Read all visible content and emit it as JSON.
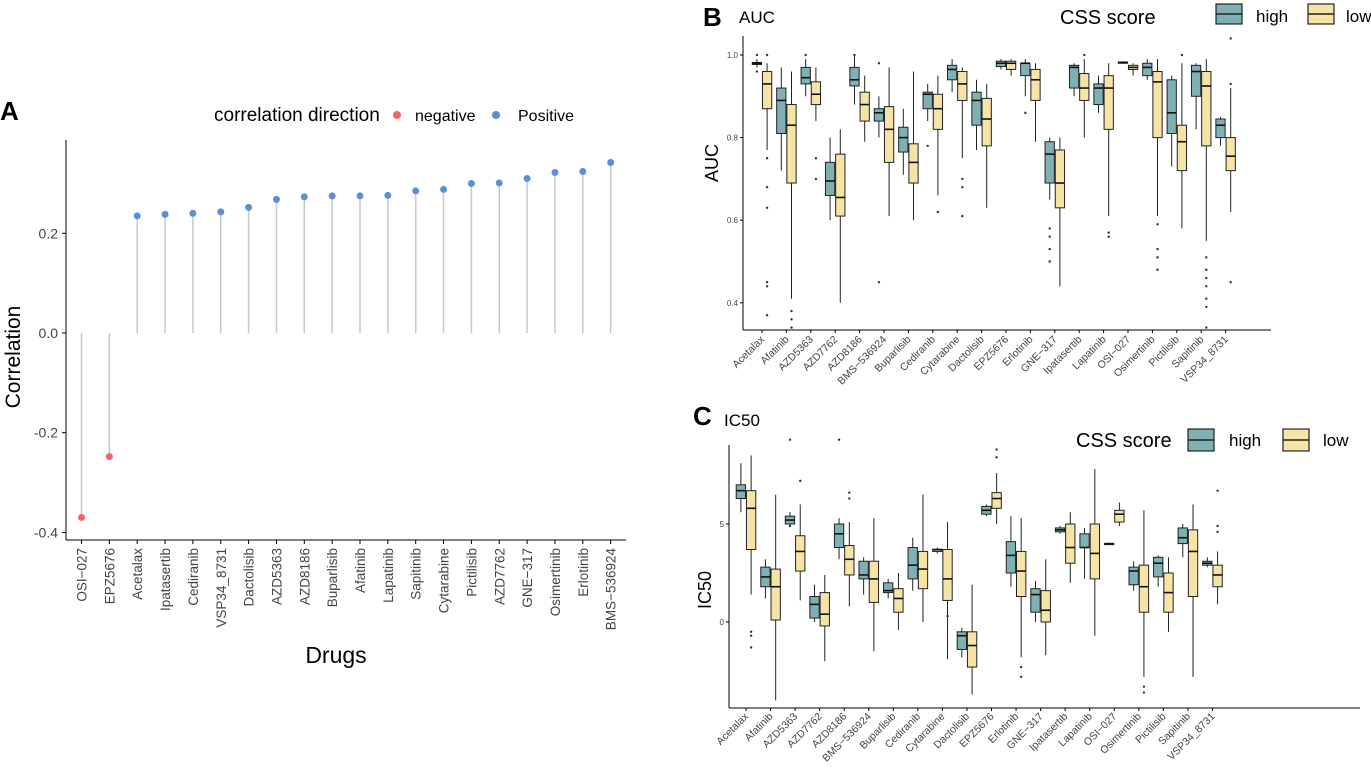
{
  "figure": {
    "panel_a": {
      "letter": "A",
      "legend_title": "correlation direction",
      "legend_negative": "negative",
      "legend_positive": "Positive"
    },
    "panel_b": {
      "letter": "B",
      "title": "AUC"
    },
    "panel_c": {
      "letter": "C",
      "title": "IC50"
    },
    "legend_css": {
      "title": "CSS score",
      "high": "high",
      "low": "low"
    }
  },
  "colors": {
    "negative": "#ee6666",
    "positive": "#5b8fd6",
    "high": "#7fb0b3",
    "low": "#f6e3a6",
    "stem": "#c8c8c8"
  },
  "chart_data": [
    {
      "type": "lollipop",
      "title": "",
      "xlabel": "Drugs",
      "ylabel": "Correlation",
      "ylim": [
        -0.41,
        0.36
      ],
      "yticks": [
        -0.4,
        -0.2,
        0.0,
        0.2
      ],
      "ytick_labels": [
        "-0.4",
        "-0.2",
        "0.0",
        "0.2"
      ],
      "legend": "top",
      "categories": [
        "OSI−027",
        "EPZ5676",
        "Acetalax",
        "Ipatasertib",
        "Cediranib",
        "VSP34_8731",
        "Dactolisib",
        "AZD5363",
        "AZD8186",
        "Buparlisib",
        "Afatinib",
        "Lapatinib",
        "Sapitinib",
        "Cytarabine",
        "Pictilisib",
        "AZD7762",
        "GNE−317",
        "Osimertinib",
        "Erlotinib",
        "BMS−536924"
      ],
      "values": [
        -0.37,
        -0.248,
        0.235,
        0.238,
        0.24,
        0.243,
        0.252,
        0.268,
        0.273,
        0.275,
        0.275,
        0.276,
        0.285,
        0.288,
        0.3,
        0.301,
        0.31,
        0.322,
        0.324,
        0.342
      ],
      "direction": [
        "negative",
        "negative",
        "positive",
        "positive",
        "positive",
        "positive",
        "positive",
        "positive",
        "positive",
        "positive",
        "positive",
        "positive",
        "positive",
        "positive",
        "positive",
        "positive",
        "positive",
        "positive",
        "positive",
        "positive"
      ]
    },
    {
      "type": "boxplot",
      "title": "AUC",
      "xlabel": "",
      "ylabel": "AUC",
      "ylim": [
        0.33,
        1.03
      ],
      "yticks": [
        0.4,
        0.6,
        0.8,
        1.0
      ],
      "ytick_labels": [
        "0.4",
        "0.6",
        "0.8",
        "1.0"
      ],
      "legend_title": "CSS score",
      "series_names": [
        "high",
        "low"
      ],
      "categories": [
        "Acetalax",
        "Afatinib",
        "AZD5363",
        "AZD7762",
        "AZD8186",
        "BMS−536924",
        "Buparlisib",
        "Cediranib",
        "Cytarabine",
        "Dactolisib",
        "EPZ5676",
        "Erlotinib",
        "GNE−317",
        "Ipatasertib",
        "Lapatinib",
        "OSI−027",
        "Osimertinib",
        "Pictilisib",
        "Sapitinib",
        "VSP34_8731"
      ],
      "high": [
        {
          "min": 0.97,
          "q1": 0.977,
          "median": 0.98,
          "q3": 0.982,
          "max": 0.99,
          "outliers": [
            1.0,
            0.96
          ]
        },
        {
          "min": 0.72,
          "q1": 0.81,
          "median": 0.89,
          "q3": 0.92,
          "max": 0.97,
          "outliers": []
        },
        {
          "min": 0.9,
          "q1": 0.93,
          "median": 0.945,
          "q3": 0.97,
          "max": 0.99,
          "outliers": [
            1.0
          ]
        },
        {
          "min": 0.6,
          "q1": 0.66,
          "median": 0.695,
          "q3": 0.74,
          "max": 0.8,
          "outliers": []
        },
        {
          "min": 0.88,
          "q1": 0.925,
          "median": 0.94,
          "q3": 0.97,
          "max": 1.0,
          "outliers": [
            1.0
          ]
        },
        {
          "min": 0.8,
          "q1": 0.84,
          "median": 0.86,
          "q3": 0.87,
          "max": 0.9,
          "outliers": [
            0.98,
            0.45
          ]
        },
        {
          "min": 0.71,
          "q1": 0.765,
          "median": 0.8,
          "q3": 0.825,
          "max": 0.87,
          "outliers": []
        },
        {
          "min": 0.84,
          "q1": 0.87,
          "median": 0.905,
          "q3": 0.91,
          "max": 0.93,
          "outliers": [
            0.78
          ]
        },
        {
          "min": 0.91,
          "q1": 0.94,
          "median": 0.965,
          "q3": 0.975,
          "max": 0.99,
          "outliers": []
        },
        {
          "min": 0.77,
          "q1": 0.83,
          "median": 0.89,
          "q3": 0.91,
          "max": 0.94,
          "outliers": []
        },
        {
          "min": 0.965,
          "q1": 0.972,
          "median": 0.98,
          "q3": 0.985,
          "max": 0.99,
          "outliers": []
        },
        {
          "min": 0.9,
          "q1": 0.95,
          "median": 0.98,
          "q3": 0.98,
          "max": 0.99,
          "outliers": [
            0.86
          ]
        },
        {
          "min": 0.65,
          "q1": 0.69,
          "median": 0.76,
          "q3": 0.79,
          "max": 0.8,
          "outliers": [
            0.58,
            0.56,
            0.53,
            0.5
          ]
        },
        {
          "min": 0.9,
          "q1": 0.92,
          "median": 0.97,
          "q3": 0.975,
          "max": 0.98,
          "outliers": []
        },
        {
          "min": 0.86,
          "q1": 0.88,
          "median": 0.92,
          "q3": 0.93,
          "max": 0.95,
          "outliers": []
        },
        {
          "min": 0.98,
          "q1": 0.98,
          "median": 0.982,
          "q3": 0.983,
          "max": 0.985,
          "outliers": []
        },
        {
          "min": 0.94,
          "q1": 0.95,
          "median": 0.97,
          "q3": 0.98,
          "max": 0.99,
          "outliers": []
        },
        {
          "min": 0.73,
          "q1": 0.81,
          "median": 0.86,
          "q3": 0.94,
          "max": 0.95,
          "outliers": []
        },
        {
          "min": 0.82,
          "q1": 0.9,
          "median": 0.96,
          "q3": 0.975,
          "max": 0.98,
          "outliers": []
        },
        {
          "min": 0.78,
          "q1": 0.8,
          "median": 0.83,
          "q3": 0.845,
          "max": 0.85,
          "outliers": []
        }
      ],
      "low": [
        {
          "min": 0.77,
          "q1": 0.87,
          "median": 0.93,
          "q3": 0.96,
          "max": 0.98,
          "outliers": [
            1.0,
            0.75,
            0.68,
            0.63,
            0.45,
            0.44,
            0.37
          ]
        },
        {
          "min": 0.41,
          "q1": 0.69,
          "median": 0.83,
          "q3": 0.88,
          "max": 0.96,
          "outliers": [
            0.38,
            0.36,
            0.34
          ]
        },
        {
          "min": 0.84,
          "q1": 0.88,
          "median": 0.905,
          "q3": 0.935,
          "max": 0.97,
          "outliers": [
            0.75,
            0.7
          ]
        },
        {
          "min": 0.4,
          "q1": 0.61,
          "median": 0.655,
          "q3": 0.76,
          "max": 0.82,
          "outliers": []
        },
        {
          "min": 0.79,
          "q1": 0.84,
          "median": 0.88,
          "q3": 0.91,
          "max": 0.95,
          "outliers": []
        },
        {
          "min": 0.61,
          "q1": 0.74,
          "median": 0.82,
          "q3": 0.875,
          "max": 0.97,
          "outliers": []
        },
        {
          "min": 0.6,
          "q1": 0.69,
          "median": 0.74,
          "q3": 0.785,
          "max": 0.96,
          "outliers": []
        },
        {
          "min": 0.66,
          "q1": 0.82,
          "median": 0.87,
          "q3": 0.905,
          "max": 0.95,
          "outliers": [
            0.62
          ]
        },
        {
          "min": 0.75,
          "q1": 0.89,
          "median": 0.93,
          "q3": 0.96,
          "max": 0.97,
          "outliers": [
            0.7,
            0.68,
            0.61
          ]
        },
        {
          "min": 0.63,
          "q1": 0.78,
          "median": 0.845,
          "q3": 0.895,
          "max": 0.93,
          "outliers": []
        },
        {
          "min": 0.95,
          "q1": 0.965,
          "median": 0.98,
          "q3": 0.985,
          "max": 0.99,
          "outliers": []
        },
        {
          "min": 0.79,
          "q1": 0.89,
          "median": 0.94,
          "q3": 0.965,
          "max": 0.98,
          "outliers": []
        },
        {
          "min": 0.44,
          "q1": 0.63,
          "median": 0.69,
          "q3": 0.77,
          "max": 0.8,
          "outliers": []
        },
        {
          "min": 0.8,
          "q1": 0.89,
          "median": 0.92,
          "q3": 0.955,
          "max": 0.99,
          "outliers": [
            1.0
          ]
        },
        {
          "min": 0.61,
          "q1": 0.82,
          "median": 0.92,
          "q3": 0.95,
          "max": 0.98,
          "outliers": [
            0.57,
            0.56
          ]
        },
        {
          "min": 0.95,
          "q1": 0.965,
          "median": 0.97,
          "q3": 0.975,
          "max": 0.98,
          "outliers": []
        },
        {
          "min": 0.61,
          "q1": 0.8,
          "median": 0.935,
          "q3": 0.96,
          "max": 0.99,
          "outliers": [
            0.59,
            0.53,
            0.51,
            0.48
          ]
        },
        {
          "min": 0.58,
          "q1": 0.72,
          "median": 0.79,
          "q3": 0.83,
          "max": 0.98,
          "outliers": [
            1.0
          ]
        },
        {
          "min": 0.55,
          "q1": 0.78,
          "median": 0.925,
          "q3": 0.96,
          "max": 0.99,
          "outliers": [
            0.51,
            0.48,
            0.46,
            0.44,
            0.41,
            0.39,
            0.34
          ]
        },
        {
          "min": 0.62,
          "q1": 0.72,
          "median": 0.755,
          "q3": 0.8,
          "max": 0.92,
          "outliers": [
            1.04,
            0.93,
            0.45
          ]
        }
      ]
    },
    {
      "type": "boxplot",
      "title": "IC50",
      "xlabel": "",
      "ylabel": "IC50",
      "ylim": [
        -4.2,
        9.5
      ],
      "yticks": [
        0,
        5
      ],
      "ytick_labels": [
        "0",
        "5"
      ],
      "legend_title": "CSS score",
      "series_names": [
        "high",
        "low"
      ],
      "categories": [
        "Acetalax",
        "Afatinib",
        "AZD5363",
        "AZD7762",
        "AZD8186",
        "BMS−536924",
        "Buparlisib",
        "Cediranib",
        "Cytarabine",
        "Dactolisib",
        "EPZ5676",
        "Erlotinib",
        "GNE−317",
        "Ipatasertib",
        "Lapatinib",
        "OSI−027",
        "Osimertinib",
        "Pictilisib",
        "Sapitinib",
        "VSP34_8731"
      ],
      "high": [
        {
          "min": 5.6,
          "q1": 6.3,
          "median": 6.7,
          "q3": 7.0,
          "max": 8.1,
          "outliers": []
        },
        {
          "min": 1.2,
          "q1": 1.8,
          "median": 2.3,
          "q3": 2.8,
          "max": 3.2,
          "outliers": []
        },
        {
          "min": 4.9,
          "q1": 5.0,
          "median": 5.2,
          "q3": 5.4,
          "max": 5.6,
          "outliers": [
            9.3,
            4.9
          ]
        },
        {
          "min": 0.0,
          "q1": 0.2,
          "median": 0.9,
          "q3": 1.3,
          "max": 1.9,
          "outliers": []
        },
        {
          "min": 3.2,
          "q1": 3.8,
          "median": 4.5,
          "q3": 5.0,
          "max": 5.3,
          "outliers": [
            9.3
          ]
        },
        {
          "min": 1.4,
          "q1": 2.2,
          "median": 2.4,
          "q3": 3.1,
          "max": 3.3,
          "outliers": []
        },
        {
          "min": 1.2,
          "q1": 1.5,
          "median": 1.6,
          "q3": 2.0,
          "max": 2.2,
          "outliers": []
        },
        {
          "min": 1.6,
          "q1": 2.2,
          "median": 2.9,
          "q3": 3.8,
          "max": 4.3,
          "outliers": []
        },
        {
          "min": 3.5,
          "q1": 3.6,
          "median": 3.7,
          "q3": 3.7,
          "max": 3.8,
          "outliers": []
        },
        {
          "min": -1.8,
          "q1": -1.4,
          "median": -0.7,
          "q3": -0.5,
          "max": -0.3,
          "outliers": []
        },
        {
          "min": 5.4,
          "q1": 5.5,
          "median": 5.7,
          "q3": 5.9,
          "max": 6.0,
          "outliers": []
        },
        {
          "min": 1.8,
          "q1": 2.5,
          "median": 3.4,
          "q3": 4.1,
          "max": 5.4,
          "outliers": []
        },
        {
          "min": 0.0,
          "q1": 0.5,
          "median": 1.4,
          "q3": 1.7,
          "max": 2.1,
          "outliers": []
        },
        {
          "min": 4.5,
          "q1": 4.6,
          "median": 4.7,
          "q3": 4.8,
          "max": 4.9,
          "outliers": []
        },
        {
          "min": 2.2,
          "q1": 3.8,
          "median": 3.8,
          "q3": 4.5,
          "max": 4.8,
          "outliers": []
        },
        {
          "min": 4.0,
          "q1": 4.0,
          "median": 4.0,
          "q3": 4.0,
          "max": 4.0,
          "outliers": []
        },
        {
          "min": 1.6,
          "q1": 1.9,
          "median": 2.6,
          "q3": 2.8,
          "max": 3.1,
          "outliers": []
        },
        {
          "min": 1.8,
          "q1": 2.3,
          "median": 3.0,
          "q3": 3.3,
          "max": 3.4,
          "outliers": []
        },
        {
          "min": 3.3,
          "q1": 4.0,
          "median": 4.3,
          "q3": 4.8,
          "max": 5.0,
          "outliers": []
        },
        {
          "min": 2.8,
          "q1": 2.9,
          "median": 3.0,
          "q3": 3.1,
          "max": 3.3,
          "outliers": []
        }
      ],
      "low": [
        {
          "min": 1.4,
          "q1": 3.7,
          "median": 5.8,
          "q3": 6.7,
          "max": 8.5,
          "outliers": [
            -0.5,
            -0.7,
            -1.3
          ]
        },
        {
          "min": -4.0,
          "q1": 0.1,
          "median": 1.8,
          "q3": 2.7,
          "max": 6.5,
          "outliers": []
        },
        {
          "min": 1.1,
          "q1": 2.6,
          "median": 3.6,
          "q3": 4.4,
          "max": 6.0,
          "outliers": [
            7.2
          ]
        },
        {
          "min": -2.0,
          "q1": -0.2,
          "median": 0.4,
          "q3": 1.5,
          "max": 2.4,
          "outliers": []
        },
        {
          "min": 0.8,
          "q1": 2.4,
          "median": 3.2,
          "q3": 3.9,
          "max": 5.1,
          "outliers": [
            6.6,
            6.3
          ]
        },
        {
          "min": -1.5,
          "q1": 1.0,
          "median": 2.2,
          "q3": 3.1,
          "max": 5.3,
          "outliers": []
        },
        {
          "min": -0.4,
          "q1": 0.5,
          "median": 1.2,
          "q3": 1.7,
          "max": 2.5,
          "outliers": []
        },
        {
          "min": 0.0,
          "q1": 1.7,
          "median": 2.7,
          "q3": 3.6,
          "max": 6.5,
          "outliers": []
        },
        {
          "min": -1.9,
          "q1": 1.1,
          "median": 2.2,
          "q3": 3.7,
          "max": 5.1,
          "outliers": [
            0.3
          ]
        },
        {
          "min": -3.7,
          "q1": -2.3,
          "median": -1.2,
          "q3": -0.5,
          "max": 1.9,
          "outliers": []
        },
        {
          "min": 5.0,
          "q1": 5.8,
          "median": 6.3,
          "q3": 6.6,
          "max": 7.6,
          "outliers": [
            8.8,
            8.4
          ]
        },
        {
          "min": -1.8,
          "q1": 1.3,
          "median": 2.6,
          "q3": 3.6,
          "max": 5.3,
          "outliers": [
            -2.3,
            -2.8
          ]
        },
        {
          "min": -1.7,
          "q1": 0.0,
          "median": 0.6,
          "q3": 1.6,
          "max": 3.2,
          "outliers": []
        },
        {
          "min": 2.0,
          "q1": 3.0,
          "median": 3.8,
          "q3": 5.0,
          "max": 5.6,
          "outliers": []
        },
        {
          "min": -0.7,
          "q1": 2.2,
          "median": 3.5,
          "q3": 5.0,
          "max": 7.8,
          "outliers": []
        },
        {
          "min": 4.9,
          "q1": 5.1,
          "median": 5.5,
          "q3": 5.7,
          "max": 6.1,
          "outliers": []
        },
        {
          "min": -2.8,
          "q1": 0.5,
          "median": 1.8,
          "q3": 2.9,
          "max": 5.7,
          "outliers": [
            -3.3,
            -3.6
          ]
        },
        {
          "min": -0.5,
          "q1": 0.5,
          "median": 1.5,
          "q3": 2.5,
          "max": 3.3,
          "outliers": []
        },
        {
          "min": -2.8,
          "q1": 1.3,
          "median": 3.6,
          "q3": 4.7,
          "max": 6.0,
          "outliers": []
        },
        {
          "min": 0.9,
          "q1": 1.8,
          "median": 2.4,
          "q3": 2.9,
          "max": 3.6,
          "outliers": [
            6.7,
            4.9,
            4.6
          ]
        }
      ]
    }
  ]
}
